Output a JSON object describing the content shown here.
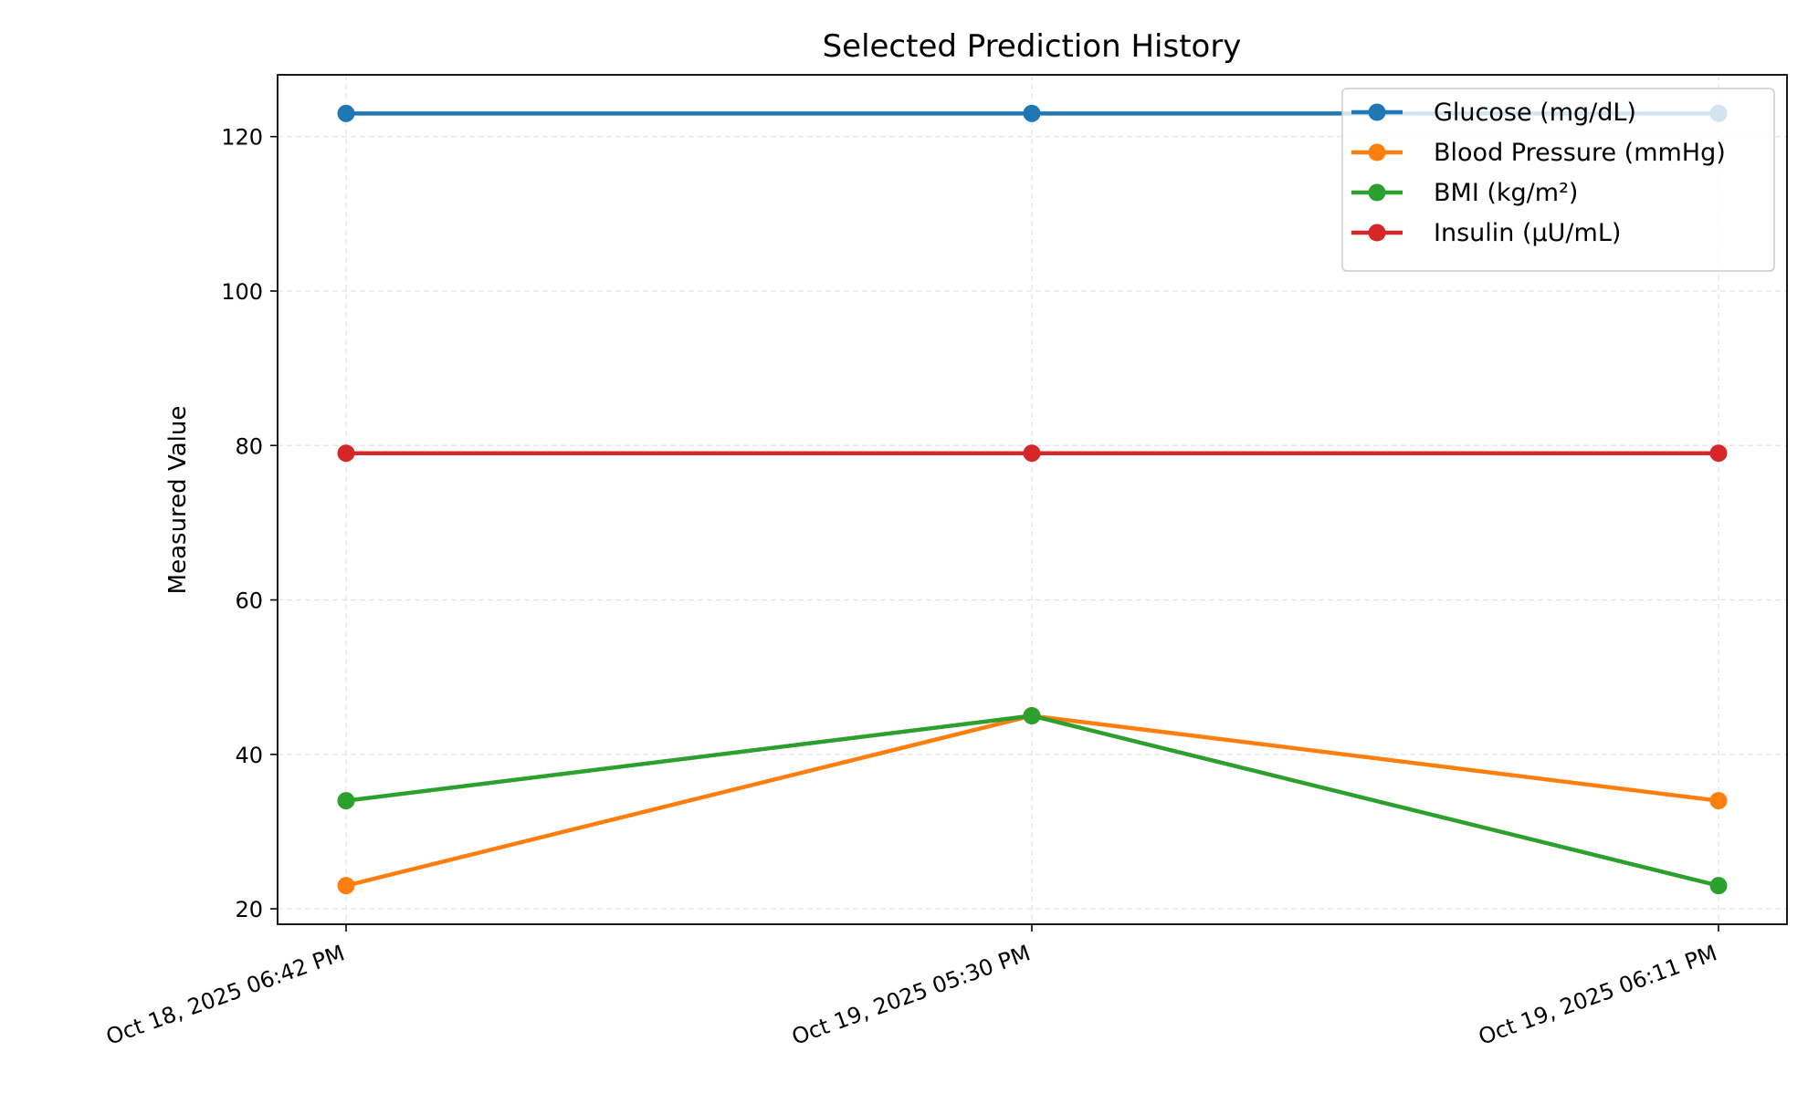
{
  "chart_data": {
    "type": "line",
    "title": "Selected Prediction History",
    "xlabel": "",
    "ylabel": "Measured Value",
    "categories": [
      "Oct 18, 2025 06:42 PM",
      "Oct 19, 2025 05:30 PM",
      "Oct 19, 2025 06:11 PM"
    ],
    "ylim": [
      18,
      128
    ],
    "yticks": [
      20,
      40,
      60,
      80,
      100,
      120
    ],
    "grid": true,
    "legend_position": "top-right",
    "series": [
      {
        "name": "Glucose (mg/dL)",
        "color": "#1f77b4",
        "values": [
          123,
          123,
          123
        ]
      },
      {
        "name": "Blood Pressure (mmHg)",
        "color": "#ff7f0e",
        "values": [
          23,
          45,
          34
        ]
      },
      {
        "name": "BMI (kg/m²)",
        "color": "#2ca02c",
        "values": [
          34,
          45,
          23
        ]
      },
      {
        "name": "Insulin (µU/mL)",
        "color": "#d62728",
        "values": [
          79,
          79,
          79
        ]
      }
    ]
  }
}
